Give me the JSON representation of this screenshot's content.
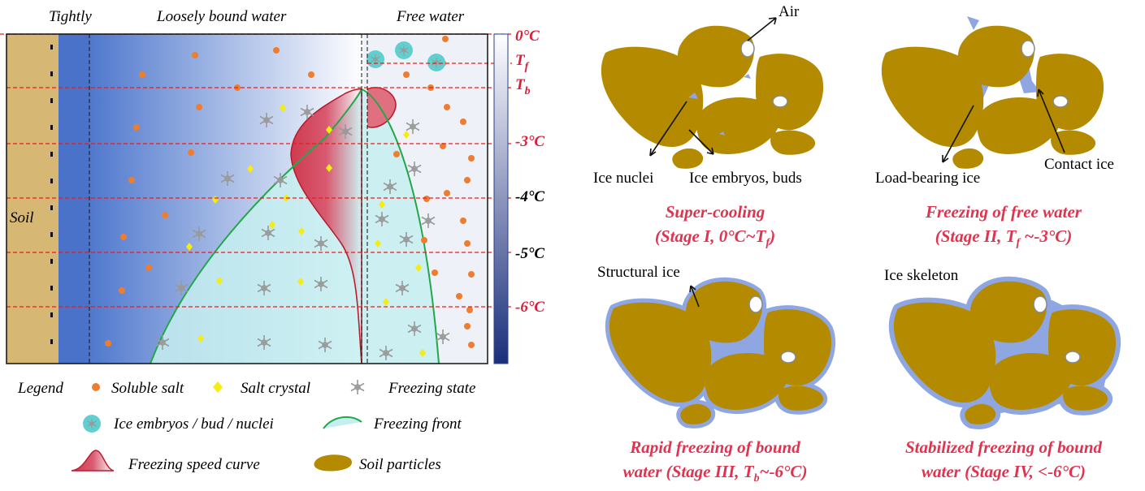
{
  "left_panel": {
    "zones": [
      "Tightly",
      "Loosely bound water",
      "Free water"
    ],
    "soil": "Soil",
    "temperatures": [
      {
        "symbol": "0°C"
      },
      {
        "symbol": "T",
        "subscript": "f"
      },
      {
        "symbol": "T",
        "subscript": "b"
      },
      {
        "symbol": "-3°C"
      },
      {
        "symbol": "-4°C"
      },
      {
        "symbol": "-5°C"
      },
      {
        "symbol": "-6°C"
      }
    ]
  },
  "legend": {
    "title": "Legend",
    "items": [
      "Soluble salt",
      "Salt crystal",
      "Freezing state",
      "Ice embryos / bud / nuclei",
      "Freezing front",
      "Freezing speed curve",
      "Soil particles"
    ]
  },
  "stages": [
    {
      "callouts": [
        "Air",
        "Ice nuclei",
        "Ice embryos, buds"
      ],
      "title": "Super-cooling",
      "subtitle": [
        "(Stage I, 0°C~T",
        "f",
        ")"
      ]
    },
    {
      "callouts": [
        "Load-bearing ice",
        "Contact ice"
      ],
      "title": "Freezing of free water",
      "subtitle": [
        "(Stage II, T",
        "f",
        " ~-3°C)"
      ]
    },
    {
      "callouts": [
        "Structural ice"
      ],
      "title": "Rapid freezing of bound",
      "subtitle": [
        "water (Stage III, T",
        "b",
        "~-6°C)"
      ]
    },
    {
      "callouts": [
        "Ice skeleton"
      ],
      "title": "Stabilized freezing of bound",
      "subtitle": [
        "water (Stage IV, <-6°C)"
      ]
    }
  ]
}
